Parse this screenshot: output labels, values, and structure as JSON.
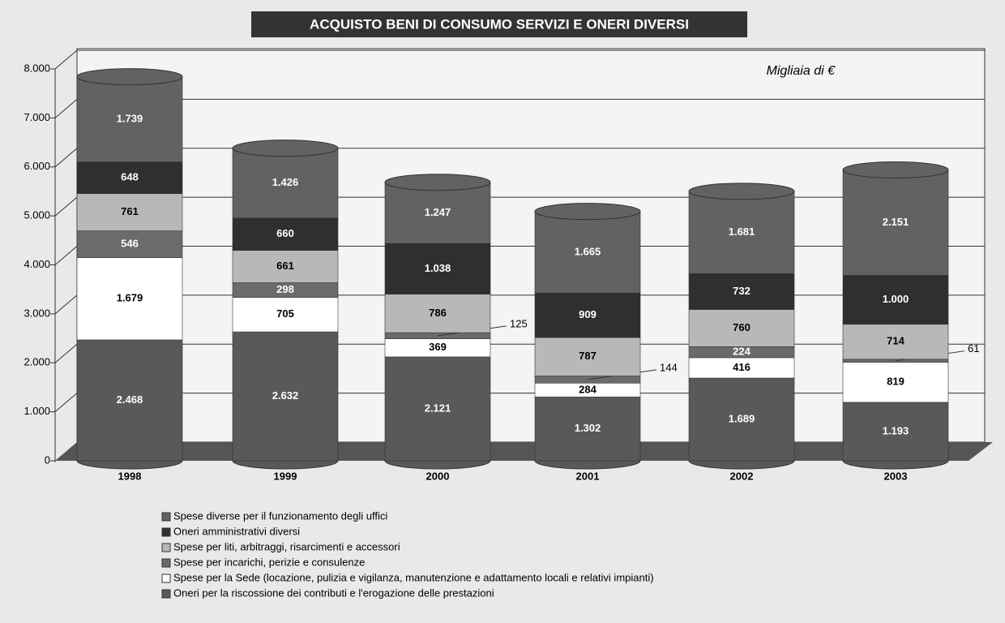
{
  "chart_data": {
    "type": "stacked_bar",
    "title": "ACQUISTO BENI DI CONSUMO SERVIZI E ONERI DIVERSI",
    "annotation": "Migliaia di €",
    "categories": [
      "1998",
      "1999",
      "2000",
      "2001",
      "2002",
      "2003"
    ],
    "series": [
      {
        "name": "Oneri per la riscossione dei contributi e l'erogazione delle prestazioni",
        "color": "#595959",
        "values": [
          2468,
          2632,
          2121,
          1302,
          1689,
          1193
        ],
        "value_labels": [
          "2.468",
          "2.632",
          "2.121",
          "1.302",
          "1.689",
          "1.193"
        ]
      },
      {
        "name": "Spese per la Sede (locazione, pulizia e vigilanza, manutenzione e adattamento locali e relativi impianti)",
        "color": "#ffffff",
        "values": [
          1679,
          705,
          369,
          284,
          416,
          819
        ],
        "value_labels": [
          "1.679",
          "705",
          "369",
          "284",
          "416",
          "819"
        ]
      },
      {
        "name": "Spese per incarichi, perizie e consulenze",
        "color": "#6b6b6b",
        "values": [
          546,
          298,
          125,
          144,
          224,
          61
        ],
        "value_labels": [
          "546",
          "298",
          "125",
          "144",
          "224",
          "61"
        ]
      },
      {
        "name": "Spese per liti, arbitraggi, risarcimenti e accessori",
        "color": "#b8b8b8",
        "values": [
          761,
          661,
          786,
          787,
          760,
          714
        ],
        "value_labels": [
          "761",
          "661",
          "786",
          "787",
          "760",
          "714"
        ]
      },
      {
        "name": "Oneri amministrativi diversi",
        "color": "#2f2f2f",
        "values": [
          648,
          660,
          1038,
          909,
          732,
          1000
        ],
        "value_labels": [
          "648",
          "660",
          "1.038",
          "909",
          "732",
          "1.000"
        ]
      },
      {
        "name": "Spese diverse per il funzionamento degli uffici",
        "color": "#626262",
        "values": [
          1739,
          1426,
          1247,
          1665,
          1681,
          2151
        ],
        "value_labels": [
          "1.739",
          "1.426",
          "1.247",
          "1.665",
          "1.681",
          "2.151"
        ]
      }
    ],
    "ylim": [
      0,
      8000
    ],
    "yticks": [
      0,
      {
        "value": 1000,
        "label": "1.000"
      },
      {
        "value": 2000,
        "label": "2.000"
      },
      {
        "value": 3000,
        "label": "3.000"
      },
      {
        "value": 4000,
        "label": "4.000"
      },
      {
        "value": 5000,
        "label": "5.000"
      },
      {
        "value": 6000,
        "label": "6.000"
      },
      {
        "value": 7000,
        "label": "7.000"
      },
      {
        "value": 8000,
        "label": "8.000"
      }
    ],
    "grid": true
  }
}
